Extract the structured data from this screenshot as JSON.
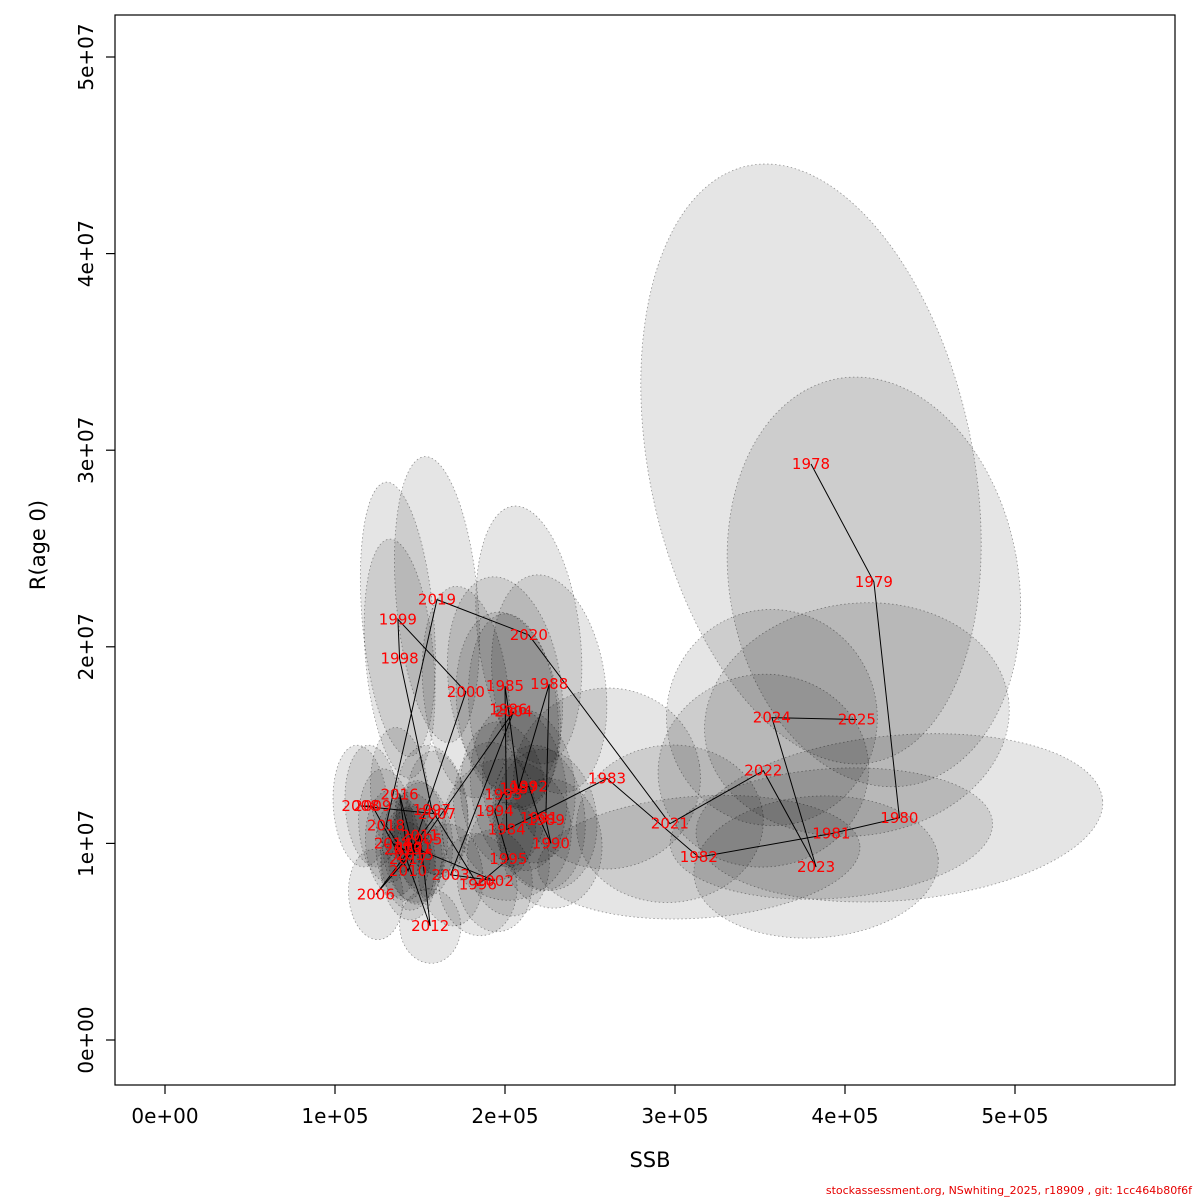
{
  "figure": {
    "xlabel": "SSB",
    "ylabel": "R(age 0)",
    "footer": "stockassessment.org, NSwhiting_2025, r18909 , git: 1cc464b80f6f"
  },
  "chart_data": {
    "type": "scatter",
    "title": "",
    "xlabel": "SSB",
    "ylabel": "R(age 0)",
    "xlim": [
      -30000,
      594000
    ],
    "ylim": [
      0,
      52000000
    ],
    "grid": false,
    "legend": "none",
    "x_ticks": {
      "values": [
        0,
        100000,
        200000,
        300000,
        400000,
        500000
      ],
      "labels": [
        "0e+00",
        "1e+05",
        "2e+05",
        "3e+05",
        "4e+05",
        "5e+05"
      ]
    },
    "y_ticks": {
      "values": [
        0,
        10000000,
        20000000,
        30000000,
        40000000,
        50000000
      ],
      "labels": [
        "0e+00",
        "1e+07",
        "2e+07",
        "3e+07",
        "4e+07",
        "5e+07"
      ]
    },
    "label_color": "#ff0000",
    "line_color": "#000000",
    "ellipse_fill": "rgba(0,0,0,0.10)",
    "ellipse_stroke": "rgba(0,0,0,0.40)",
    "points": [
      {
        "year": 1978,
        "ssb": 380000,
        "rec": 29300000,
        "ex": 95000,
        "ey": 15500000,
        "rot": -12
      },
      {
        "year": 1979,
        "ssb": 417000,
        "rec": 23300000,
        "ex": 85000,
        "ey": 10500000,
        "rot": -10
      },
      {
        "year": 1980,
        "ssb": 432000,
        "rec": 11300000,
        "ex": 120000,
        "ey": 4200000,
        "rot": -5
      },
      {
        "year": 1981,
        "ssb": 392000,
        "rec": 10500000,
        "ex": 95000,
        "ey": 3300000,
        "rot": -4
      },
      {
        "year": 1982,
        "ssb": 314000,
        "rec": 9300000,
        "ex": 95000,
        "ey": 3100000,
        "rot": -4
      },
      {
        "year": 1983,
        "ssb": 260000,
        "rec": 13300000,
        "ex": 55000,
        "ey": 4600000,
        "rot": -8
      },
      {
        "year": 1984,
        "ssb": 201000,
        "rec": 10700000,
        "ex": 38000,
        "ey": 3600000,
        "rot": -8
      },
      {
        "year": 1985,
        "ssb": 200000,
        "rec": 18000000,
        "ex": 33000,
        "ey": 5600000,
        "rot": -8
      },
      {
        "year": 1986,
        "ssb": 202000,
        "rec": 16800000,
        "ex": 30000,
        "ey": 5000000,
        "rot": -8
      },
      {
        "year": 1987,
        "ssb": 208000,
        "rec": 12800000,
        "ex": 28000,
        "ey": 4200000,
        "rot": -7
      },
      {
        "year": 1988,
        "ssb": 226000,
        "rec": 18100000,
        "ex": 33000,
        "ey": 5600000,
        "rot": -8
      },
      {
        "year": 1989,
        "ssb": 224000,
        "rec": 11200000,
        "ex": 30000,
        "ey": 3600000,
        "rot": -6
      },
      {
        "year": 1990,
        "ssb": 227000,
        "rec": 10000000,
        "ex": 30000,
        "ey": 3300000,
        "rot": -6
      },
      {
        "year": 1991,
        "ssb": 220000,
        "rec": 11300000,
        "ex": 27000,
        "ey": 3700000,
        "rot": -6
      },
      {
        "year": 1992,
        "ssb": 214000,
        "rec": 12900000,
        "ex": 27000,
        "ey": 3900000,
        "rot": -6
      },
      {
        "year": 1993,
        "ssb": 199000,
        "rec": 12500000,
        "ex": 25000,
        "ey": 3700000,
        "rot": -6
      },
      {
        "year": 1994,
        "ssb": 194000,
        "rec": 11650000,
        "ex": 24000,
        "ey": 3500000,
        "rot": -6
      },
      {
        "year": 1995,
        "ssb": 202000,
        "rec": 9200000,
        "ex": 24000,
        "ey": 2900000,
        "rot": -6
      },
      {
        "year": 1996,
        "ssb": 184000,
        "rec": 7900000,
        "ex": 23000,
        "ey": 2600000,
        "rot": -6
      },
      {
        "year": 1997,
        "ssb": 157000,
        "rec": 11700000,
        "ex": 21000,
        "ey": 3300000,
        "rot": -6
      },
      {
        "year": 1998,
        "ssb": 138000,
        "rec": 19400000,
        "ex": 20000,
        "ey": 6100000,
        "rot": -5
      },
      {
        "year": 1999,
        "ssb": 137000,
        "rec": 21400000,
        "ex": 21000,
        "ey": 7000000,
        "rot": -5
      },
      {
        "year": 2000,
        "ssb": 177000,
        "rec": 17700000,
        "ex": 25000,
        "ey": 5400000,
        "rot": -6
      },
      {
        "year": 2001,
        "ssb": 146000,
        "rec": 9800000,
        "ex": 18000,
        "ey": 2800000,
        "rot": -5
      },
      {
        "year": 2002,
        "ssb": 194000,
        "rec": 8100000,
        "ex": 22000,
        "ey": 2600000,
        "rot": -5
      },
      {
        "year": 2003,
        "ssb": 168000,
        "rec": 8400000,
        "ex": 19000,
        "ey": 2600000,
        "rot": -5
      },
      {
        "year": 2004,
        "ssb": 205000,
        "rec": 16700000,
        "ex": 26000,
        "ey": 5000000,
        "rot": -6
      },
      {
        "year": 2005,
        "ssb": 152000,
        "rec": 10200000,
        "ex": 17000,
        "ey": 2900000,
        "rot": -5
      },
      {
        "year": 2006,
        "ssb": 124000,
        "rec": 7400000,
        "ex": 16000,
        "ey": 2300000,
        "rot": -4
      },
      {
        "year": 2007,
        "ssb": 160000,
        "rec": 11500000,
        "ex": 18000,
        "ey": 3200000,
        "rot": -5
      },
      {
        "year": 2008,
        "ssb": 115000,
        "rec": 11900000,
        "ex": 16000,
        "ey": 3100000,
        "rot": -4
      },
      {
        "year": 2009,
        "ssb": 122000,
        "rec": 11900000,
        "ex": 16000,
        "ey": 3100000,
        "rot": -4
      },
      {
        "year": 2010,
        "ssb": 143000,
        "rec": 8600000,
        "ex": 16000,
        "ey": 2500000,
        "rot": -4
      },
      {
        "year": 2011,
        "ssb": 150000,
        "rec": 10400000,
        "ex": 16000,
        "ey": 2800000,
        "rot": -4
      },
      {
        "year": 2012,
        "ssb": 156000,
        "rec": 5800000,
        "ex": 18000,
        "ey": 1900000,
        "rot": -4
      },
      {
        "year": 2013,
        "ssb": 140000,
        "rec": 9700000,
        "ex": 16000,
        "ey": 2600000,
        "rot": -4
      },
      {
        "year": 2014,
        "ssb": 134000,
        "rec": 10000000,
        "ex": 16000,
        "ey": 2700000,
        "rot": -4
      },
      {
        "year": 2015,
        "ssb": 147000,
        "rec": 9400000,
        "ex": 16000,
        "ey": 2500000,
        "rot": -4
      },
      {
        "year": 2016,
        "ssb": 138000,
        "rec": 12500000,
        "ex": 17000,
        "ey": 3400000,
        "rot": -4
      },
      {
        "year": 2017,
        "ssb": 143000,
        "rec": 9200000,
        "ex": 16000,
        "ey": 2600000,
        "rot": -4
      },
      {
        "year": 2018,
        "ssb": 130000,
        "rec": 10900000,
        "ex": 16000,
        "ey": 2900000,
        "rot": -4
      },
      {
        "year": 2019,
        "ssb": 160000,
        "rec": 22400000,
        "ex": 24000,
        "ey": 7300000,
        "rot": -5
      },
      {
        "year": 2020,
        "ssb": 214000,
        "rec": 20600000,
        "ex": 30000,
        "ey": 6600000,
        "rot": -7
      },
      {
        "year": 2021,
        "ssb": 297000,
        "rec": 11000000,
        "ex": 55000,
        "ey": 4000000,
        "rot": -5
      },
      {
        "year": 2022,
        "ssb": 352000,
        "rec": 13700000,
        "ex": 62000,
        "ey": 4900000,
        "rot": -6
      },
      {
        "year": 2023,
        "ssb": 383000,
        "rec": 8800000,
        "ex": 72000,
        "ey": 3600000,
        "rot": -4
      },
      {
        "year": 2024,
        "ssb": 357000,
        "rec": 16400000,
        "ex": 62000,
        "ey": 5500000,
        "rot": -6
      },
      {
        "year": 2025,
        "ssb": 407000,
        "rec": 16300000,
        "ex": 90000,
        "ey": 5900000,
        "rot": -8
      }
    ]
  }
}
